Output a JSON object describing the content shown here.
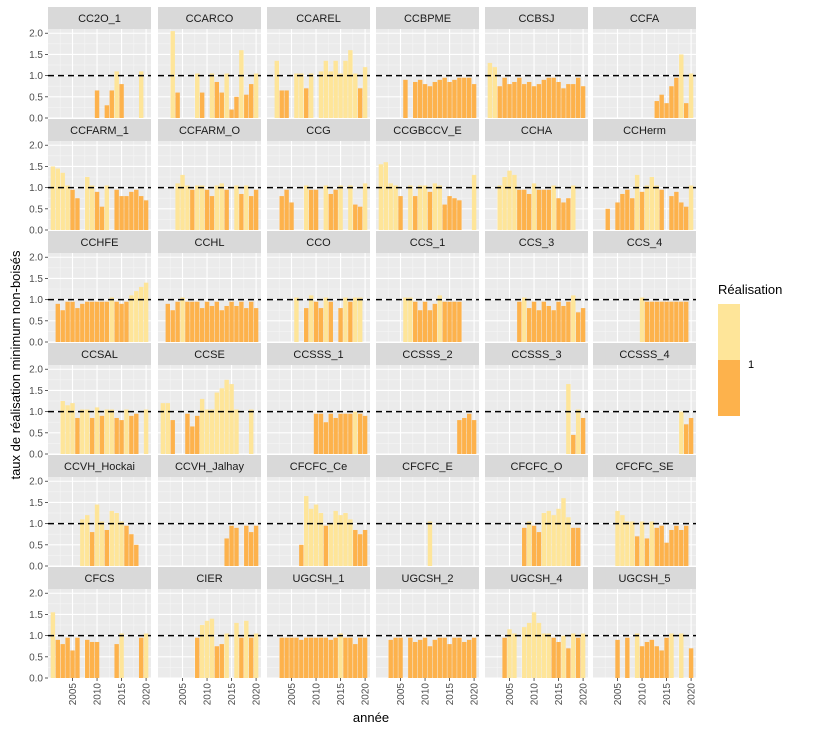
{
  "chart_data": {
    "type": "bar",
    "facet_layout": "6 columns x 6 rows",
    "xlabel": "année",
    "ylabel": "taux de réalisation minimum non-boisés",
    "xlim": [
      2000,
      2021
    ],
    "ylim": [
      0,
      2.1
    ],
    "x_ticks": [
      "2005",
      "2010",
      "2015",
      "2020"
    ],
    "y_ticks": [
      "0.0",
      "0.5",
      "1.0",
      "1.5",
      "2.0"
    ],
    "reference_line": 1.0,
    "reference_style": "dashed",
    "grid": true,
    "legend": {
      "title": "Réalisation",
      "position": "right",
      "label": "1"
    },
    "colors": {
      "high": "#fee599",
      "low": "#fdb24c",
      "panel_bg": "#ebebeb",
      "strip_bg": "#d9d9d9",
      "reference": "#000000"
    },
    "years": [
      2001,
      2002,
      2003,
      2004,
      2005,
      2006,
      2007,
      2008,
      2009,
      2010,
      2011,
      2012,
      2013,
      2014,
      2015,
      2016,
      2017,
      2018,
      2019,
      2020
    ],
    "facets": [
      {
        "name": "CC2O_1",
        "values": [
          0,
          0,
          0,
          0,
          0,
          0,
          0,
          0,
          0,
          0.65,
          0,
          0.3,
          0.65,
          1.1,
          0.8,
          0,
          0,
          0,
          1.1,
          0
        ]
      },
      {
        "name": "CCARCO",
        "values": [
          0,
          0,
          2.05,
          0.6,
          0,
          0,
          0,
          1.05,
          0.6,
          0,
          1.05,
          0.85,
          0.6,
          1.05,
          0.2,
          0.5,
          1.6,
          0.55,
          0.8,
          1.05
        ]
      },
      {
        "name": "CCAREL",
        "values": [
          0,
          1.35,
          0.65,
          0.65,
          0,
          1.05,
          1.05,
          0.7,
          1.05,
          0,
          1.1,
          1.35,
          1.1,
          1.35,
          1.05,
          1.35,
          1.6,
          1.05,
          0.7,
          1.2
        ]
      },
      {
        "name": "CCBPME",
        "values": [
          0,
          0,
          0,
          0,
          0,
          0.9,
          0,
          0.85,
          0.9,
          0.8,
          0.75,
          0.85,
          0.9,
          0.95,
          0.85,
          0.9,
          0.95,
          0.95,
          0.95,
          0.8
        ]
      },
      {
        "name": "CCBSJ",
        "values": [
          1.3,
          1.2,
          0.75,
          0.95,
          0.8,
          0.85,
          0.95,
          0.8,
          0.85,
          0.75,
          0.8,
          0.9,
          0.95,
          0.95,
          0.85,
          0.7,
          0.8,
          0.8,
          0.95,
          0.75
        ]
      },
      {
        "name": "CCFA",
        "values": [
          0,
          0,
          0,
          0,
          0,
          0,
          0,
          0,
          0,
          0,
          0,
          0,
          0.4,
          0.55,
          0.35,
          0.75,
          0.95,
          1.5,
          0.35,
          1.05
        ]
      },
      {
        "name": "CCFARM_1",
        "values": [
          1.5,
          1.45,
          1.35,
          1.05,
          0.95,
          0.75,
          0,
          1.25,
          1.05,
          0.9,
          0.55,
          1.05,
          0,
          0.95,
          0.8,
          0.8,
          0.9,
          0.95,
          0.8,
          0.7
        ]
      },
      {
        "name": "CCFARM_O",
        "values": [
          0,
          0,
          0,
          1.1,
          1.3,
          1.05,
          0.95,
          1.05,
          1.05,
          0.95,
          0.8,
          1.05,
          1.1,
          0.95,
          0,
          1.05,
          0.85,
          1.05,
          0.8,
          0.95
        ]
      },
      {
        "name": "CCG",
        "values": [
          0,
          0,
          0.8,
          0.95,
          0.65,
          0,
          0,
          1.05,
          0.95,
          0.95,
          0,
          1.05,
          0.85,
          0.95,
          1.05,
          0,
          1.05,
          0.6,
          0.55,
          1.1
        ]
      },
      {
        "name": "CCGBCCV_E",
        "values": [
          1.55,
          1.6,
          1.1,
          1.05,
          0.8,
          0,
          1.05,
          0.8,
          1.05,
          1.05,
          0.9,
          1.1,
          1.05,
          0.6,
          0.8,
          0.75,
          0.7,
          0,
          0,
          1.3
        ]
      },
      {
        "name": "CCHA",
        "values": [
          0,
          0,
          1.05,
          1.25,
          1.4,
          1.3,
          0.95,
          0.95,
          0.85,
          1.1,
          0.95,
          0.95,
          0.95,
          1.05,
          0.75,
          0.65,
          0.75,
          1.05,
          0,
          0
        ]
      },
      {
        "name": "CCHerm",
        "values": [
          0,
          0,
          0.5,
          0,
          0.65,
          0.85,
          0.95,
          0.75,
          1.3,
          0.9,
          1.05,
          1.25,
          1.05,
          0.95,
          0,
          0.8,
          0.9,
          0.65,
          0.55,
          1.05
        ]
      },
      {
        "name": "CCHFE",
        "values": [
          0,
          0.9,
          0.75,
          0.95,
          0.95,
          0.8,
          0.9,
          0.95,
          0.95,
          0.95,
          0.95,
          0.95,
          1.05,
          0.95,
          0.9,
          0.95,
          1.1,
          1.2,
          1.3,
          1.4
        ]
      },
      {
        "name": "CCHL",
        "values": [
          0,
          0.9,
          0.75,
          0.95,
          1.05,
          0.95,
          0.95,
          0.95,
          0.8,
          0.95,
          0.85,
          0.95,
          0.75,
          0.85,
          0.95,
          0.85,
          0.95,
          0.8,
          0.95,
          0.8
        ]
      },
      {
        "name": "CCO",
        "values": [
          0,
          0,
          0,
          0,
          0,
          1.05,
          0,
          0.8,
          1.1,
          0.95,
          0.8,
          1.05,
          0.95,
          0,
          0.8,
          1.05,
          0.95,
          1.05,
          1.05,
          0
        ]
      },
      {
        "name": "CCS_1",
        "values": [
          0,
          0,
          0,
          0,
          0,
          1.05,
          1.05,
          0.95,
          0.75,
          0.95,
          0.75,
          0.9,
          1.1,
          0.95,
          0.95,
          0.95,
          0.95,
          0,
          0,
          0
        ]
      },
      {
        "name": "CCS_3",
        "values": [
          0,
          0,
          0,
          0,
          0,
          0,
          0.95,
          1.05,
          0.8,
          0.95,
          0.75,
          0.95,
          0.85,
          0.75,
          0.95,
          0.85,
          0.95,
          1.1,
          0.7,
          0.8
        ]
      },
      {
        "name": "CCS_4",
        "values": [
          0,
          0,
          0,
          0,
          0,
          0,
          0,
          0,
          0,
          1.05,
          0.95,
          0.95,
          0.95,
          0.95,
          0.95,
          0.95,
          0.95,
          0.95,
          0.95,
          0
        ]
      },
      {
        "name": "CCSAL",
        "values": [
          0,
          0,
          1.25,
          1.15,
          1.2,
          0.85,
          1.05,
          1.05,
          0.85,
          1.1,
          0.9,
          1.05,
          1.05,
          0.85,
          0.8,
          1.05,
          0.9,
          0.95,
          0,
          1.05
        ]
      },
      {
        "name": "CCSE",
        "values": [
          1.2,
          1.2,
          0.8,
          0,
          0,
          0.95,
          0.65,
          0.9,
          1.3,
          1.05,
          1.05,
          1.45,
          1.55,
          1.75,
          1.65,
          1.05,
          0,
          0,
          1.05,
          0
        ]
      },
      {
        "name": "CCSSS_1",
        "values": [
          0,
          0,
          0,
          0,
          0,
          0,
          0,
          0,
          0,
          0.95,
          0.95,
          0.75,
          0.95,
          0.85,
          0.95,
          0.95,
          0.95,
          1.0,
          0.95,
          0.9
        ]
      },
      {
        "name": "CCSSS_2",
        "values": [
          0,
          0,
          0,
          0,
          0,
          0,
          0,
          0,
          0,
          0,
          0,
          0,
          0,
          0,
          0,
          0,
          0.8,
          0.85,
          0.95,
          0.8
        ]
      },
      {
        "name": "CCSSS_3",
        "values": [
          0,
          0,
          0,
          0,
          0,
          0,
          0,
          0,
          0,
          0,
          0,
          0,
          0,
          0,
          0,
          0,
          1.65,
          0.45,
          1.05,
          0.85
        ]
      },
      {
        "name": "CCSSS_4",
        "values": [
          0,
          0,
          0,
          0,
          0,
          0,
          0,
          0,
          0,
          0,
          0,
          0,
          0,
          0,
          0,
          0,
          0,
          1.0,
          0.7,
          0.85
        ]
      },
      {
        "name": "CCVH_Hockai",
        "values": [
          0,
          0,
          0,
          0,
          0,
          0,
          1.1,
          1.2,
          0.8,
          1.45,
          1.05,
          0.85,
          1.3,
          1.25,
          1.05,
          0.95,
          0.75,
          0.5,
          0,
          0
        ]
      },
      {
        "name": "CCVH_Jalhay",
        "values": [
          0,
          0,
          0,
          0,
          0,
          0,
          0,
          0,
          0,
          0,
          0,
          0,
          0,
          0.65,
          0.95,
          0.9,
          0,
          0.95,
          0.8,
          0.95
        ]
      },
      {
        "name": "CFCFC_Ce",
        "values": [
          0,
          0,
          0,
          0,
          0,
          0,
          0.5,
          1.65,
          1.35,
          1.45,
          1.25,
          0.95,
          1.0,
          1.3,
          1.2,
          1.25,
          1.1,
          0.85,
          0.75,
          0.85
        ]
      },
      {
        "name": "CFCFC_E",
        "values": [
          0,
          0,
          0,
          0,
          0,
          0,
          0,
          0,
          0,
          0,
          1.05,
          0,
          0,
          0,
          0,
          0,
          0,
          0,
          0,
          0
        ]
      },
      {
        "name": "CFCFC_O",
        "values": [
          0,
          0,
          0,
          0,
          0,
          0,
          0,
          0.9,
          1.05,
          0.95,
          0.8,
          1.25,
          1.3,
          1.2,
          1.35,
          1.6,
          1.15,
          0.9,
          0.9,
          0
        ]
      },
      {
        "name": "CFCFC_SE",
        "values": [
          0,
          0,
          0,
          0,
          1.3,
          1.2,
          1.05,
          1.05,
          0.7,
          1.05,
          0.65,
          1.05,
          0.9,
          0.95,
          0.55,
          0.85,
          0.95,
          0.85,
          0.95,
          0
        ]
      },
      {
        "name": "CFCS",
        "values": [
          1.55,
          0.9,
          0.8,
          0.95,
          0.65,
          0.95,
          0,
          0.9,
          0.85,
          0.85,
          0,
          0,
          0,
          0.8,
          1.05,
          0,
          0,
          0,
          0.95,
          1.05
        ]
      },
      {
        "name": "CIER",
        "values": [
          0,
          0,
          0,
          0,
          0,
          0,
          0,
          0.95,
          1.25,
          1.35,
          1.4,
          0.75,
          0.8,
          1.05,
          0,
          1.3,
          0.95,
          1.35,
          0.95,
          1.05
        ]
      },
      {
        "name": "UGCSH_1",
        "values": [
          0,
          0,
          0.95,
          0.95,
          0.95,
          0.95,
          0.9,
          0.95,
          0.95,
          0.95,
          0.95,
          0.95,
          0.9,
          0.95,
          1.05,
          0.95,
          0.95,
          0.8,
          0.95,
          0.95
        ]
      },
      {
        "name": "UGCSH_2",
        "values": [
          0,
          0,
          0.9,
          0.95,
          0.95,
          0,
          0.95,
          0.85,
          0.9,
          0.95,
          0.75,
          0.9,
          0.95,
          0.95,
          0.8,
          0.95,
          0.95,
          0.85,
          0.9,
          0.95
        ]
      },
      {
        "name": "UGCSH_4",
        "values": [
          0,
          0,
          0,
          0.95,
          1.15,
          1.05,
          0,
          1.2,
          1.3,
          1.55,
          1.3,
          1.05,
          1.05,
          0.95,
          0.85,
          1.0,
          0.7,
          1.05,
          0.95,
          1.05
        ]
      },
      {
        "name": "UGCSH_5",
        "values": [
          0,
          0,
          0,
          0,
          0.9,
          0,
          0.95,
          0,
          1.05,
          0.75,
          0.85,
          0.9,
          0.75,
          0.65,
          0.95,
          1.05,
          0,
          1.05,
          0,
          0.7
        ]
      }
    ]
  }
}
